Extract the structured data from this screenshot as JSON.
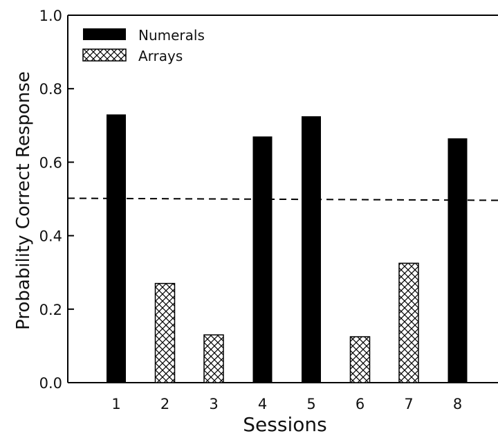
{
  "chart_data": {
    "type": "bar",
    "xlabel": "Sessions",
    "ylabel": "Probability Correct Response",
    "ylim": [
      0,
      1.0
    ],
    "yticks": [
      "0.0",
      "0.2",
      "0.4",
      "0.6",
      "0.8",
      "1.0"
    ],
    "categories": [
      "1",
      "2",
      "3",
      "4",
      "5",
      "6",
      "7",
      "8"
    ],
    "series": [
      {
        "name": "Numerals",
        "fill": "solid",
        "values": [
          0.73,
          null,
          null,
          0.67,
          0.725,
          null,
          null,
          0.665
        ]
      },
      {
        "name": "Arrays",
        "fill": "crosshatch",
        "values": [
          null,
          0.27,
          0.13,
          null,
          null,
          0.125,
          0.325,
          null
        ]
      }
    ],
    "reference_line": {
      "y": 0.5,
      "style": "dashed"
    },
    "legend_position": "top-left",
    "grid": false,
    "colors": {
      "numerals": "#000000",
      "arrays_fill": "#ffffff",
      "arrays_hatch": "#000000",
      "axis": "#000000"
    }
  }
}
